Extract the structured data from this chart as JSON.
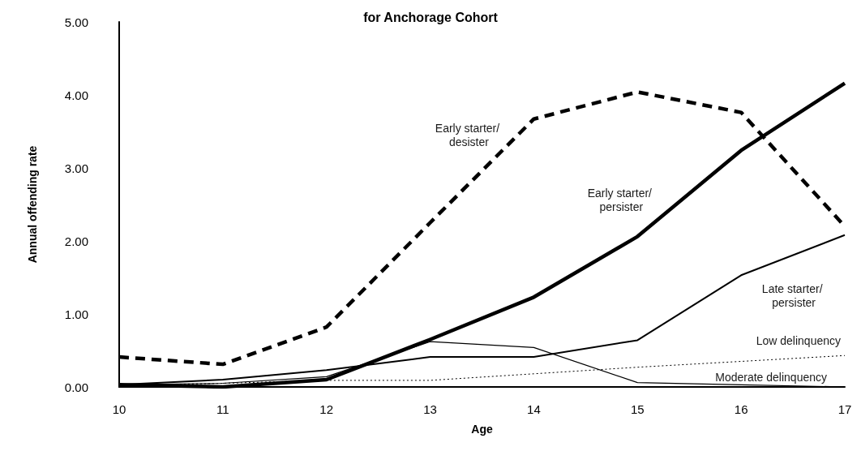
{
  "chart_data": {
    "type": "line",
    "title": "for Anchorage Cohort",
    "xlabel": "Age",
    "ylabel": "Annual offending rate",
    "x": [
      10,
      11,
      12,
      13,
      14,
      15,
      16,
      17
    ],
    "xlim": [
      10,
      17
    ],
    "xticks": [
      10,
      11,
      12,
      13,
      14,
      15,
      16,
      17
    ],
    "ylim": [
      0,
      5
    ],
    "yticks": [
      {
        "value": 0,
        "label": "0.00"
      },
      {
        "value": 1,
        "label": "1.00"
      },
      {
        "value": 2,
        "label": "2.00"
      },
      {
        "value": 3,
        "label": "3.00"
      },
      {
        "value": 4,
        "label": "4.00"
      },
      {
        "value": 5,
        "label": "5.00"
      }
    ],
    "grid": false,
    "legend": false,
    "marker": "none",
    "series": [
      {
        "name": "Early starter/ desister",
        "color": "#000000",
        "line_style": "dashed",
        "values": [
          0.41,
          0.31,
          0.82,
          2.25,
          3.67,
          4.04,
          3.76,
          2.2
        ]
      },
      {
        "name": "Early starter/ persister",
        "color": "#000000",
        "line_style": "solid",
        "values": [
          0.03,
          0.0,
          0.1,
          0.65,
          1.23,
          2.06,
          3.24,
          4.16
        ]
      },
      {
        "name": "Late starter/ persister",
        "color": "#000000",
        "line_style": "solid",
        "values": [
          0.03,
          0.1,
          0.23,
          0.41,
          0.41,
          0.64,
          1.53,
          2.08
        ]
      },
      {
        "name": "Low delinquency",
        "color": "#000000",
        "line_style": "dotted",
        "values": [
          0.02,
          0.05,
          0.09,
          0.09,
          0.18,
          0.27,
          0.35,
          0.43
        ]
      },
      {
        "name": "Moderate delinquency",
        "color": "#000000",
        "line_style": "solid",
        "values": [
          0.03,
          0.05,
          0.14,
          0.62,
          0.54,
          0.06,
          0.03,
          0.0
        ]
      }
    ]
  }
}
